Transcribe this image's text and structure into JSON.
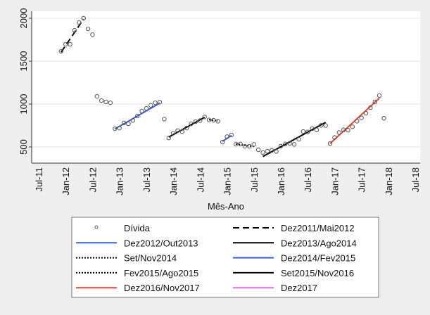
{
  "chart_data": {
    "type": "scatter",
    "title": "",
    "xlabel": "Mês-Ano",
    "ylabel": "",
    "ylim": [
      400,
      2060
    ],
    "yticks": [
      500,
      1000,
      1500,
      2000
    ],
    "xticks": [
      "Jul-11",
      "Jan-12",
      "Jul-12",
      "Jan-13",
      "Jul-13",
      "Jan-14",
      "Jul-14",
      "Jan-15",
      "Jul-15",
      "Jan-16",
      "Jul-16",
      "Jan-17",
      "Jul-17",
      "Jan-18",
      "Jul-18"
    ],
    "x_start_month": "Dez-11",
    "grid": "horizontal",
    "legend_placement": "bottom",
    "scatter": {
      "name": "Dívida",
      "values": [
        1615,
        1697,
        1697,
        1860,
        1950,
        2000,
        1877,
        1810,
        1090,
        1040,
        1025,
        1015,
        713,
        720,
        780,
        770,
        810,
        860,
        918,
        950,
        985,
        1015,
        1022,
        825,
        605,
        660,
        690,
        680,
        720,
        770,
        795,
        808,
        850,
        815,
        812,
        800,
        557,
        620,
        640,
        533,
        535,
        508,
        508,
        530,
        467,
        435,
        450,
        460,
        448,
        510,
        535,
        543,
        530,
        590,
        680,
        675,
        713,
        700,
        752,
        750,
        540,
        610,
        668,
        700,
        695,
        735,
        800,
        840,
        893,
        958,
        1025,
        1100,
        835
      ]
    },
    "trend_lines": [
      {
        "name": "Dez2011/Mai2012",
        "from_index": 0,
        "to_index": 5,
        "y_from": 1605,
        "y_to": 1990,
        "color": "#000000",
        "style": "dash"
      },
      {
        "name": "Dez2012/Out2013",
        "from_index": 12,
        "to_index": 22,
        "y_from": 710,
        "y_to": 1010,
        "color": "#3a5fe0",
        "style": "solid"
      },
      {
        "name": "Set/Nov2014",
        "from_index": 33,
        "to_index": 35,
        "y_from": 818,
        "y_to": 805,
        "color": "#000000",
        "style": "dot"
      },
      {
        "name": "Fev2015/Ago2015",
        "from_index": 39,
        "to_index": 43,
        "y_from": 535,
        "y_to": 505,
        "color": "#000000",
        "style": "dot"
      },
      {
        "name": "Dez2016/Nov2017",
        "from_index": 60,
        "to_index": 71,
        "y_from": 540,
        "y_to": 1070,
        "color": "#e8432a",
        "style": "solid"
      },
      {
        "name": "Dez2013/Ago2014",
        "from_index": 24,
        "to_index": 32,
        "y_from": 615,
        "y_to": 845,
        "color": "#000000",
        "style": "solid"
      },
      {
        "name": "Dez2014/Fev2015",
        "from_index": 36,
        "to_index": 38,
        "y_from": 565,
        "y_to": 635,
        "color": "#3a5fe0",
        "style": "solid"
      },
      {
        "name": "Set2015/Nov2016",
        "from_index": 45,
        "to_index": 59,
        "y_from": 388,
        "y_to": 787,
        "color": "#000000",
        "style": "solid"
      },
      {
        "name": "Dez2017",
        "from_index": 72,
        "to_index": 72,
        "y_from": 835,
        "y_to": 835,
        "color": "#ee66ee",
        "style": "solid"
      }
    ],
    "legend": [
      {
        "label": "Dívida",
        "kind": "marker"
      },
      {
        "label": "Dez2011/Mai2012",
        "kind": "line",
        "line": 0
      },
      {
        "label": "Dez2012/Out2013",
        "kind": "line",
        "line": 1
      },
      {
        "label": "Dez2013/Ago2014",
        "kind": "line",
        "line": 5
      },
      {
        "label": "Set/Nov2014",
        "kind": "line",
        "line": 2
      },
      {
        "label": "Dez2014/Fev2015",
        "kind": "line",
        "line": 6
      },
      {
        "label": "Fev2015/Ago2015",
        "kind": "line",
        "line": 3
      },
      {
        "label": "Set2015/Nov2016",
        "kind": "line",
        "line": 7
      },
      {
        "label": "Dez2016/Nov2017",
        "kind": "line",
        "line": 4
      },
      {
        "label": "Dez2017",
        "kind": "line",
        "line": 8
      }
    ]
  }
}
